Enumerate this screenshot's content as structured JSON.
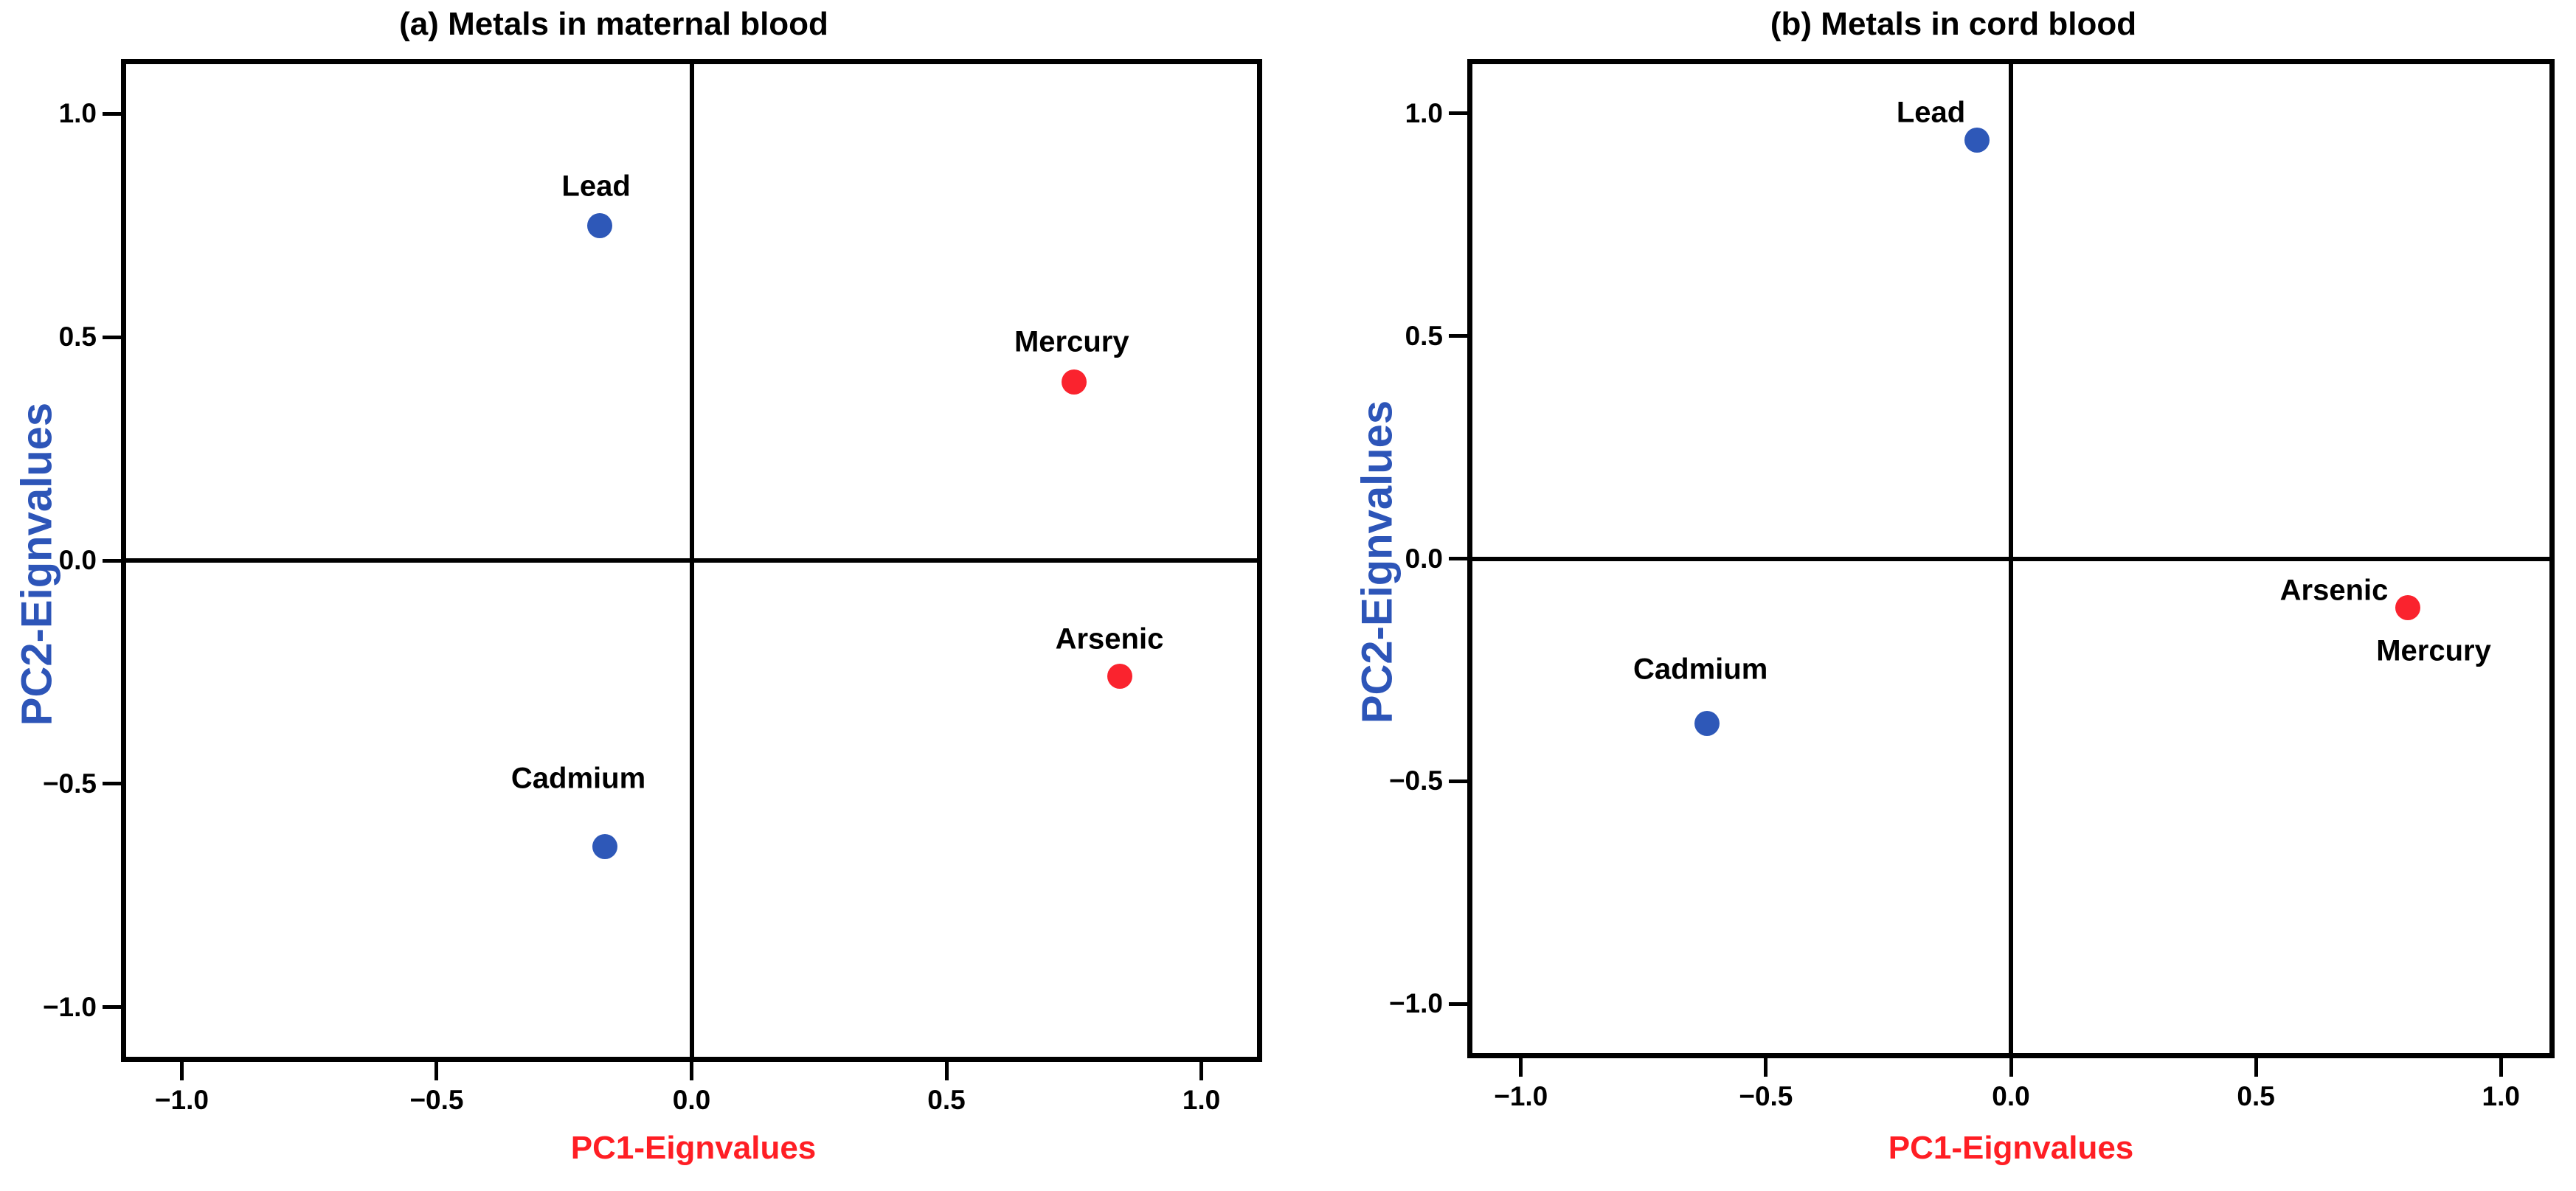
{
  "figure": {
    "background": "#FFFFFF",
    "description_title_a": "(a) Metals in maternal blood",
    "description_title_b": "(b) Metals in cord blood"
  },
  "colors": {
    "point_blue": "#2E58B8",
    "point_red": "#FA232E",
    "xlabel_red": "#FF1E24",
    "ylabel_blue": "#2D55B8",
    "axis_black": "#000000",
    "background": "#FFFFFF"
  },
  "chart_data": [
    {
      "panel": "a",
      "type": "scatter",
      "title": "(a) Metals in maternal blood",
      "xlabel": "PC1-Eignvalues",
      "ylabel": "PC2-Eignvalues",
      "xlim": [
        -1.115,
        1.115
      ],
      "ylim": [
        -1.118,
        1.118
      ],
      "grid": "off",
      "legend": "none",
      "reference_lines": {
        "vertical_at_x": 0.0,
        "horizontal_at_y": 0.0
      },
      "xticks": {
        "values": [
          -1.0,
          -0.5,
          0.0,
          0.5,
          1.0
        ],
        "labels": [
          "−1.0",
          "−0.5",
          "0.0",
          "0.5",
          "1.0"
        ]
      },
      "yticks": {
        "values": [
          1.0,
          0.5,
          0.0,
          -0.5,
          -1.0
        ],
        "labels": [
          "1.0",
          "0.5",
          "0.0",
          "−0.5",
          "−1.0"
        ]
      },
      "points": [
        {
          "label": "Lead",
          "x": -0.18,
          "y": 0.75,
          "color": "blue",
          "show_dot": true,
          "label_offset": [
            -5,
            -53
          ]
        },
        {
          "label": "Mercury",
          "x": 0.75,
          "y": 0.4,
          "color": "red",
          "show_dot": true,
          "label_offset": [
            -3,
            -54
          ]
        },
        {
          "label": "Arsenic",
          "x": 0.84,
          "y": -0.26,
          "color": "red",
          "show_dot": true,
          "label_offset": [
            -14,
            -50
          ]
        },
        {
          "label": "Cadmium",
          "x": -0.17,
          "y": -0.64,
          "color": "blue",
          "show_dot": true,
          "label_offset": [
            -36,
            -92
          ]
        }
      ]
    },
    {
      "panel": "b",
      "type": "scatter",
      "title": "(b) Metals in cord blood",
      "xlabel": "PC1-Eignvalues",
      "ylabel": "PC2-Eignvalues",
      "xlim": [
        -1.105,
        1.105
      ],
      "ylim": [
        -1.117,
        1.117
      ],
      "grid": "off",
      "legend": "none",
      "reference_lines": {
        "vertical_at_x": 0.0,
        "horizontal_at_y": 0.0
      },
      "xticks": {
        "values": [
          -1.0,
          -0.5,
          0.0,
          0.5,
          1.0
        ],
        "labels": [
          "−1.0",
          "−0.5",
          "0.0",
          "0.5",
          "1.0"
        ]
      },
      "yticks": {
        "values": [
          1.0,
          0.5,
          0.0,
          -0.5,
          -1.0
        ],
        "labels": [
          "1.0",
          "0.5",
          "0.0",
          "−0.5",
          "−1.0"
        ]
      },
      "points": [
        {
          "label": "Lead",
          "x": -0.07,
          "y": 0.94,
          "color": "blue",
          "show_dot": true,
          "label_offset": [
            -62,
            -37
          ]
        },
        {
          "label": "Cadmium",
          "x": -0.62,
          "y": -0.37,
          "color": "blue",
          "show_dot": true,
          "label_offset": [
            -9,
            -73
          ]
        },
        {
          "label": "Arsenic",
          "x": 0.81,
          "y": -0.11,
          "color": "red",
          "show_dot": true,
          "label_offset": [
            -100,
            -23
          ]
        },
        {
          "label": "Mercury",
          "x": 0.81,
          "y": -0.11,
          "color": "red",
          "show_dot": false,
          "label_offset": [
            35,
            59
          ]
        }
      ]
    }
  ]
}
